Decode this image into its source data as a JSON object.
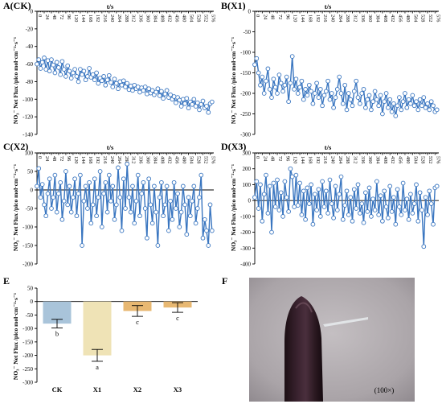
{
  "chart_data": [
    {
      "type": "line",
      "panel": "A(CK)",
      "xlabel": "t/s",
      "ylabel": "NO₃⁻ Net Flux /pico mol·cm⁻²·s⁻¹",
      "ylim": [
        -140,
        0
      ],
      "yticks": [
        0,
        -20,
        -40,
        -60,
        -80,
        -100,
        -120,
        -140
      ],
      "xticks": [
        "0",
        "24",
        "48",
        "72",
        "96",
        "120",
        "144",
        "168",
        "192",
        "216",
        "240",
        "264",
        "288",
        "312",
        "336",
        "360",
        "384",
        "408",
        "432",
        "456",
        "480",
        "504",
        "528",
        "552",
        "576"
      ],
      "color": "#3a76c0",
      "x": [
        0,
        6,
        12,
        18,
        24,
        30,
        36,
        42,
        48,
        54,
        60,
        66,
        72,
        78,
        84,
        90,
        96,
        102,
        108,
        114,
        120,
        126,
        132,
        138,
        144,
        150,
        156,
        162,
        168,
        174,
        180,
        186,
        192,
        198,
        204,
        210,
        216,
        222,
        228,
        234,
        240,
        246,
        252,
        258,
        264,
        270,
        276,
        282,
        288,
        294,
        300,
        306,
        312,
        318,
        324,
        330,
        336,
        342,
        348,
        354,
        360,
        366,
        372,
        378,
        384,
        390,
        396,
        402,
        408,
        414,
        420,
        426,
        432,
        438,
        444,
        450,
        456,
        462,
        468,
        474,
        480,
        486,
        492,
        498,
        504,
        510,
        516,
        522,
        528,
        534,
        540,
        546,
        552,
        558,
        564,
        570,
        576,
        582
      ],
      "y": [
        -60,
        -55,
        -65,
        -58,
        -53,
        -66,
        -56,
        -68,
        -55,
        -61,
        -70,
        -58,
        -64,
        -72,
        -57,
        -66,
        -74,
        -62,
        -68,
        -76,
        -70,
        -66,
        -74,
        -80,
        -66,
        -72,
        -68,
        -78,
        -74,
        -65,
        -75,
        -72,
        -78,
        -70,
        -82,
        -76,
        -79,
        -74,
        -84,
        -78,
        -73,
        -81,
        -86,
        -77,
        -82,
        -88,
        -80,
        -84,
        -79,
        -86,
        -82,
        -89,
        -85,
        -90,
        -84,
        -88,
        -86,
        -92,
        -87,
        -90,
        -86,
        -94,
        -88,
        -93,
        -90,
        -95,
        -92,
        -88,
        -96,
        -91,
        -99,
        -94,
        -90,
        -98,
        -95,
        -100,
        -97,
        -104,
        -98,
        -101,
        -108,
        -100,
        -105,
        -99,
        -110,
        -103,
        -106,
        -100,
        -108,
        -104,
        -112,
        -106,
        -102,
        -110,
        -108,
        -115,
        -105,
        -103
      ]
    },
    {
      "type": "line",
      "panel": "B(X1)",
      "xlabel": "t/s",
      "ylabel": "NO₃⁻ Net Flux /pico mol·cm⁻²·s⁻¹",
      "ylim": [
        -300,
        0
      ],
      "yticks": [
        0,
        -50,
        -100,
        -150,
        -200,
        -250,
        -300
      ],
      "xticks": [
        "0",
        "24",
        "48",
        "72",
        "96",
        "120",
        "144",
        "168",
        "192",
        "216",
        "240",
        "264",
        "288",
        "312",
        "336",
        "360",
        "384",
        "408",
        "432",
        "456",
        "480",
        "504",
        "528",
        "552",
        "576"
      ],
      "color": "#3a76c0",
      "x": [
        0,
        6,
        12,
        18,
        24,
        30,
        36,
        42,
        48,
        54,
        60,
        66,
        72,
        78,
        84,
        90,
        96,
        102,
        108,
        114,
        120,
        126,
        132,
        138,
        144,
        150,
        156,
        162,
        168,
        174,
        180,
        186,
        192,
        198,
        204,
        210,
        216,
        222,
        228,
        234,
        240,
        246,
        252,
        258,
        264,
        270,
        276,
        282,
        288,
        294,
        300,
        306,
        312,
        318,
        324,
        330,
        336,
        342,
        348,
        354,
        360,
        366,
        372,
        378,
        384,
        390,
        396,
        402,
        408,
        414,
        420,
        426,
        432,
        438,
        444,
        450,
        456,
        462,
        468,
        474,
        480,
        486,
        492,
        498,
        504,
        510,
        516,
        522,
        528,
        534,
        540,
        546,
        552,
        558,
        564,
        570,
        576,
        582
      ],
      "y": [
        -130,
        -115,
        -150,
        -180,
        -160,
        -200,
        -170,
        -140,
        -190,
        -210,
        -165,
        -185,
        -200,
        -155,
        -175,
        -195,
        -180,
        -160,
        -220,
        -175,
        -110,
        -190,
        -165,
        -200,
        -185,
        -170,
        -215,
        -190,
        -205,
        -180,
        -195,
        -225,
        -200,
        -175,
        -210,
        -190,
        -230,
        -205,
        -195,
        -170,
        -215,
        -200,
        -235,
        -210,
        -190,
        -160,
        -200,
        -225,
        -180,
        -240,
        -200,
        -215,
        -230,
        -195,
        -170,
        -210,
        -225,
        -200,
        -190,
        -235,
        -215,
        -205,
        -240,
        -220,
        -195,
        -215,
        -230,
        -205,
        -250,
        -220,
        -200,
        -235,
        -215,
        -245,
        -225,
        -255,
        -230,
        -210,
        -240,
        -220,
        -200,
        -235,
        -215,
        -225,
        -205,
        -230,
        -220,
        -240,
        -215,
        -230,
        -210,
        -235,
        -225,
        -240,
        -220,
        -230,
        -245,
        -240
      ]
    },
    {
      "type": "line",
      "panel": "C(X2)",
      "xlabel": "t/s",
      "ylabel": "NO₃⁻ Net Flux /pico mol·cm⁻²·s⁻¹",
      "ylim": [
        -200,
        100
      ],
      "yticks": [
        100,
        50,
        0,
        -50,
        -100,
        -150,
        -200
      ],
      "xticks": [
        "0",
        "24",
        "48",
        "72",
        "96",
        "120",
        "144",
        "168",
        "192",
        "216",
        "240",
        "264",
        "288",
        "312",
        "336",
        "360",
        "384",
        "408",
        "432",
        "456",
        "480",
        "504",
        "528",
        "552",
        "576"
      ],
      "color": "#3a76c0",
      "x": [
        0,
        6,
        12,
        18,
        24,
        30,
        36,
        42,
        48,
        54,
        60,
        66,
        72,
        78,
        84,
        90,
        96,
        102,
        108,
        114,
        120,
        126,
        132,
        138,
        144,
        150,
        156,
        162,
        168,
        174,
        180,
        186,
        192,
        198,
        204,
        210,
        216,
        222,
        228,
        234,
        240,
        246,
        252,
        258,
        264,
        270,
        276,
        282,
        288,
        294,
        300,
        306,
        312,
        318,
        324,
        330,
        336,
        342,
        348,
        354,
        360,
        366,
        372,
        378,
        384,
        390,
        396,
        402,
        408,
        414,
        420,
        426,
        432,
        438,
        444,
        450,
        456,
        462,
        468,
        474,
        480,
        486,
        492,
        498,
        504,
        510,
        516,
        522,
        528,
        534,
        540,
        546,
        552,
        558,
        564,
        570,
        576,
        582
      ],
      "y": [
        10,
        58,
        -20,
        15,
        -40,
        -70,
        -10,
        30,
        -50,
        -20,
        40,
        -60,
        -10,
        20,
        -80,
        -30,
        50,
        -40,
        10,
        -60,
        -20,
        30,
        -70,
        -10,
        40,
        -150,
        -30,
        10,
        -50,
        20,
        -90,
        -40,
        30,
        -70,
        -20,
        50,
        -100,
        -10,
        20,
        -60,
        40,
        -30,
        10,
        -80,
        -40,
        60,
        -20,
        -110,
        30,
        -50,
        70,
        -20,
        -60,
        10,
        -90,
        -30,
        40,
        -70,
        -10,
        20,
        -50,
        -130,
        30,
        -40,
        -90,
        10,
        -60,
        -150,
        -20,
        20,
        -70,
        -40,
        10,
        -110,
        -30,
        -80,
        20,
        -50,
        -10,
        -100,
        -60,
        10,
        -40,
        -120,
        -20,
        -70,
        -30,
        10,
        -90,
        -50,
        -20,
        40,
        -130,
        -80,
        -110,
        -150,
        -40,
        -110
      ]
    },
    {
      "type": "line",
      "panel": "D(X3)",
      "xlabel": "t/s",
      "ylabel": "NO₃⁻ Net Flux /pico mol·cm⁻²·s⁻¹",
      "ylim": [
        -400,
        300
      ],
      "yticks": [
        300,
        200,
        100,
        0,
        -100,
        -200,
        -300,
        -400
      ],
      "xticks": [
        "0",
        "24",
        "48",
        "72",
        "96",
        "120",
        "144",
        "168",
        "192",
        "216",
        "240",
        "264",
        "288",
        "312",
        "336",
        "360",
        "384",
        "408",
        "432",
        "456",
        "480",
        "504",
        "528",
        "552",
        "576"
      ],
      "color": "#3a76c0",
      "x": [
        0,
        6,
        12,
        18,
        24,
        30,
        36,
        42,
        48,
        54,
        60,
        66,
        72,
        78,
        84,
        90,
        96,
        102,
        108,
        114,
        120,
        126,
        132,
        138,
        144,
        150,
        156,
        162,
        168,
        174,
        180,
        186,
        192,
        198,
        204,
        210,
        216,
        222,
        228,
        234,
        240,
        246,
        252,
        258,
        264,
        270,
        276,
        282,
        288,
        294,
        300,
        306,
        312,
        318,
        324,
        330,
        336,
        342,
        348,
        354,
        360,
        366,
        372,
        378,
        384,
        390,
        396,
        402,
        408,
        414,
        420,
        426,
        432,
        438,
        444,
        450,
        456,
        462,
        468,
        474,
        480,
        486,
        492,
        498,
        504,
        510,
        516,
        522,
        528,
        534,
        540,
        546,
        552,
        558,
        564,
        570,
        576,
        582
      ],
      "y": [
        20,
        120,
        -50,
        100,
        -130,
        40,
        160,
        -80,
        90,
        -200,
        110,
        -40,
        130,
        -60,
        50,
        -100,
        120,
        20,
        -70,
        200,
        150,
        -40,
        160,
        -30,
        110,
        -90,
        60,
        -120,
        80,
        -20,
        100,
        -150,
        40,
        -60,
        70,
        -100,
        120,
        -40,
        60,
        -80,
        130,
        -20,
        -110,
        90,
        -60,
        40,
        150,
        -120,
        -30,
        60,
        -90,
        20,
        -130,
        70,
        -50,
        100,
        -80,
        -20,
        -140,
        50,
        -70,
        80,
        -100,
        10,
        -60,
        120,
        -90,
        30,
        -130,
        60,
        -40,
        -110,
        90,
        -70,
        20,
        -150,
        70,
        -40,
        -90,
        110,
        -60,
        10,
        -120,
        40,
        -80,
        -20,
        100,
        -130,
        50,
        -60,
        -290,
        20,
        -90,
        60,
        -20,
        -150,
        80,
        90
      ]
    },
    {
      "type": "bar",
      "panel": "E",
      "ylabel": "NO₃⁻ Net Flux /pico mol·cm⁻²·s⁻¹",
      "ylim": [
        -300,
        50
      ],
      "yticks": [
        50,
        0,
        -50,
        -100,
        -150,
        -200,
        -250,
        -300
      ],
      "categories": [
        "CK",
        "X1",
        "X2",
        "X3"
      ],
      "values": [
        -82,
        -200,
        -35,
        -22
      ],
      "errors": [
        16,
        22,
        20,
        18
      ],
      "significance": [
        "b",
        "a",
        "c",
        "c"
      ],
      "colors": [
        "#a9c4da",
        "#efe3b6",
        "#e8b872",
        "#e8b872"
      ]
    }
  ],
  "photo": {
    "label": "F",
    "magnification": "(100×)"
  }
}
